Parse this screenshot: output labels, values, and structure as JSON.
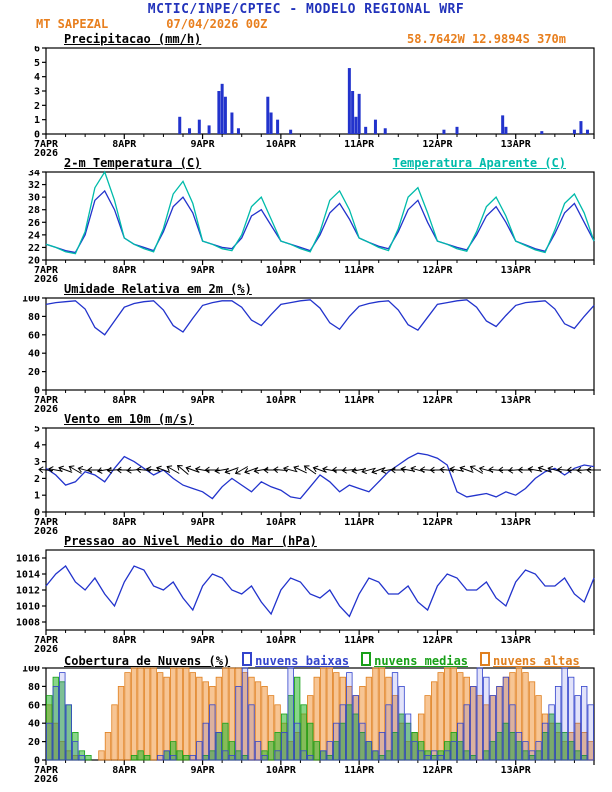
{
  "header": {
    "title": "MCTIC/INPE/CPTEC - MODELO REGIONAL WRF",
    "station": "MT SAPEZAL",
    "run": "07/04/2026 00Z",
    "location": "58.7642W 12.9894S 370m",
    "colors": {
      "title": "#2233bb",
      "meta": "#e87f1e"
    }
  },
  "x_axis": {
    "tick_labels": [
      "7APR",
      "8APR",
      "9APR",
      "10APR",
      "11APR",
      "12APR",
      "13APR"
    ],
    "year_label": "2026",
    "hours_total": 168
  },
  "chart_data": [
    {
      "id": "precipitation",
      "type": "bar",
      "title": "Precipitacao (mm/h)",
      "ylim": [
        0,
        6
      ],
      "yticks": [
        0,
        1,
        2,
        3,
        4,
        5,
        6
      ],
      "color": "#2233cc",
      "bars": [
        [
          41,
          1.2
        ],
        [
          44,
          0.4
        ],
        [
          47,
          1.0
        ],
        [
          50,
          0.6
        ],
        [
          53,
          3.0
        ],
        [
          54,
          3.5
        ],
        [
          55,
          2.6
        ],
        [
          57,
          1.5
        ],
        [
          59,
          0.4
        ],
        [
          68,
          2.6
        ],
        [
          69,
          1.5
        ],
        [
          71,
          1.0
        ],
        [
          75,
          0.3
        ],
        [
          93,
          4.6
        ],
        [
          94,
          3.0
        ],
        [
          95,
          1.2
        ],
        [
          96,
          2.8
        ],
        [
          98,
          0.5
        ],
        [
          101,
          1.0
        ],
        [
          104,
          0.4
        ],
        [
          122,
          0.3
        ],
        [
          126,
          0.5
        ],
        [
          140,
          1.3
        ],
        [
          141,
          0.5
        ],
        [
          152,
          0.2
        ],
        [
          162,
          0.3
        ],
        [
          164,
          0.9
        ],
        [
          166,
          0.3
        ]
      ]
    },
    {
      "id": "temperature",
      "type": "line",
      "title": "2-m Temperatura (C)",
      "ylim": [
        20,
        34
      ],
      "yticks": [
        20,
        22,
        24,
        26,
        28,
        30,
        32,
        34
      ],
      "step_hours": 3,
      "series": [
        {
          "name": "2-m Temperatura (C)",
          "color": "#2233cc",
          "values": [
            22.5,
            22.0,
            21.5,
            21.2,
            24.0,
            29.5,
            31.0,
            28.0,
            23.5,
            22.5,
            22.0,
            21.5,
            24.5,
            28.5,
            30.0,
            27.5,
            23.0,
            22.5,
            22.0,
            21.8,
            23.5,
            27.0,
            28.0,
            25.5,
            23.0,
            22.5,
            22.0,
            21.5,
            24.0,
            27.5,
            29.0,
            26.5,
            23.5,
            22.8,
            22.2,
            21.8,
            24.5,
            28.0,
            29.5,
            26.0,
            23.0,
            22.5,
            22.0,
            21.6,
            24.0,
            27.0,
            28.5,
            26.0,
            23.0,
            22.4,
            21.8,
            21.4,
            24.2,
            27.5,
            29.0,
            26.0,
            23.0
          ]
        },
        {
          "name": "Temperatura Aparente (C)",
          "color": "#00bbaa",
          "values": [
            22.5,
            22.0,
            21.3,
            21.0,
            24.5,
            31.5,
            34.0,
            29.5,
            23.5,
            22.5,
            21.8,
            21.3,
            25.0,
            30.5,
            32.5,
            29.0,
            23.0,
            22.5,
            21.8,
            21.5,
            24.0,
            28.5,
            30.0,
            26.5,
            23.0,
            22.5,
            21.8,
            21.3,
            24.5,
            29.5,
            31.0,
            28.0,
            23.5,
            22.8,
            22.0,
            21.5,
            25.0,
            30.0,
            31.5,
            27.5,
            23.0,
            22.5,
            21.8,
            21.4,
            24.5,
            28.5,
            30.0,
            27.0,
            23.0,
            22.3,
            21.6,
            21.2,
            24.8,
            29.0,
            30.5,
            27.5,
            23.0
          ]
        }
      ]
    },
    {
      "id": "humidity",
      "type": "line",
      "title": "Umidade Relativa em 2m (%)",
      "ylim": [
        0,
        100
      ],
      "yticks": [
        0,
        20,
        40,
        60,
        80,
        100
      ],
      "step_hours": 3,
      "series": [
        {
          "name": "Umidade Relativa em 2m (%)",
          "color": "#2233cc",
          "values": [
            93,
            95,
            96,
            97,
            88,
            68,
            60,
            75,
            90,
            94,
            96,
            97,
            87,
            70,
            63,
            78,
            92,
            95,
            97,
            97,
            90,
            76,
            70,
            82,
            93,
            95,
            97,
            98,
            89,
            73,
            66,
            80,
            91,
            94,
            96,
            97,
            87,
            71,
            65,
            79,
            93,
            95,
            97,
            98,
            90,
            75,
            69,
            81,
            92,
            95,
            96,
            97,
            88,
            72,
            67,
            80,
            92
          ]
        }
      ]
    },
    {
      "id": "wind",
      "type": "line",
      "title": "Vento em 10m (m/s)",
      "ylim": [
        0,
        5
      ],
      "yticks": [
        0,
        1,
        2,
        3,
        4,
        5
      ],
      "step_hours": 3,
      "series": [
        {
          "name": "Vento em 10m (m/s)",
          "color": "#2233cc",
          "values": [
            2.6,
            2.2,
            1.6,
            1.8,
            2.4,
            2.2,
            1.8,
            2.6,
            3.3,
            3.0,
            2.6,
            2.2,
            2.5,
            2.0,
            1.6,
            1.4,
            1.2,
            0.8,
            1.5,
            2.0,
            1.6,
            1.2,
            1.8,
            1.5,
            1.3,
            0.9,
            0.8,
            1.5,
            2.2,
            1.8,
            1.2,
            1.6,
            1.4,
            1.2,
            1.8,
            2.4,
            2.8,
            3.2,
            3.5,
            3.4,
            3.2,
            2.8,
            1.2,
            0.9,
            1.0,
            1.1,
            0.9,
            1.2,
            1.0,
            1.4,
            2.0,
            2.4,
            2.6,
            2.2,
            2.6,
            2.8,
            2.7
          ]
        }
      ],
      "barbs": {
        "y": 2.5,
        "color": "#000000",
        "angles": [
          185,
          190,
          200,
          210,
          195,
          180,
          170,
          175,
          180,
          175,
          185,
          190,
          200,
          210,
          220,
          200,
          190,
          180,
          170,
          160,
          150,
          160,
          170,
          180,
          185,
          195,
          205,
          215,
          200,
          190,
          180,
          175,
          170,
          165,
          160,
          170,
          180,
          190,
          195,
          185,
          180,
          185,
          190,
          200,
          210,
          195,
          185,
          180,
          175,
          180,
          190,
          200,
          195,
          185,
          180,
          175,
          180
        ]
      }
    },
    {
      "id": "pressure",
      "type": "line",
      "title": "Pressao ao Nivel Medio do Mar (hPa)",
      "ylim": [
        1007,
        1017
      ],
      "yticks": [
        1008,
        1010,
        1012,
        1014,
        1016
      ],
      "step_hours": 3,
      "series": [
        {
          "name": "Pressao ao Nivel Medio do Mar (hPa)",
          "color": "#2233cc",
          "values": [
            1012.5,
            1014.0,
            1015.0,
            1013.0,
            1012.0,
            1013.5,
            1011.5,
            1010.0,
            1013.0,
            1015.0,
            1014.5,
            1012.5,
            1012.0,
            1013.0,
            1011.0,
            1009.5,
            1012.5,
            1014.0,
            1013.5,
            1012.0,
            1011.5,
            1012.5,
            1010.5,
            1009.0,
            1012.0,
            1013.5,
            1013.0,
            1011.5,
            1011.0,
            1012.0,
            1010.0,
            1008.7,
            1011.5,
            1013.5,
            1013.0,
            1011.5,
            1011.5,
            1012.5,
            1010.5,
            1009.5,
            1012.5,
            1014.0,
            1013.5,
            1012.0,
            1012.0,
            1013.0,
            1011.0,
            1010.0,
            1013.0,
            1014.5,
            1014.0,
            1012.5,
            1012.5,
            1013.5,
            1011.5,
            1010.5,
            1013.5
          ]
        }
      ]
    },
    {
      "id": "clouds",
      "type": "bar-multi",
      "title": "Cobertura de Nuvens (%)",
      "ylim": [
        0,
        100
      ],
      "yticks": [
        0,
        20,
        40,
        60,
        80,
        100
      ],
      "step_hours": 2,
      "series": [
        {
          "name": "nuvens baixas",
          "color": "#3344cc",
          "fill": "rgba(60,70,220,0.15)",
          "values": [
            40,
            80,
            95,
            60,
            20,
            5,
            0,
            0,
            0,
            0,
            0,
            0,
            0,
            0,
            0,
            0,
            0,
            5,
            10,
            5,
            0,
            0,
            5,
            20,
            40,
            60,
            30,
            10,
            5,
            80,
            100,
            60,
            20,
            5,
            0,
            10,
            30,
            100,
            40,
            10,
            5,
            0,
            10,
            20,
            40,
            60,
            95,
            70,
            40,
            20,
            10,
            30,
            60,
            95,
            80,
            50,
            20,
            10,
            5,
            10,
            5,
            10,
            20,
            40,
            60,
            80,
            100,
            90,
            70,
            80,
            90,
            60,
            30,
            20,
            10,
            20,
            40,
            60,
            80,
            100,
            90,
            70,
            80,
            60
          ]
        },
        {
          "name": "nuvens medias",
          "color": "#18a018",
          "fill": "rgba(40,180,40,0.55)",
          "values": [
            70,
            90,
            85,
            60,
            30,
            10,
            5,
            0,
            0,
            0,
            0,
            0,
            0,
            5,
            10,
            5,
            0,
            0,
            10,
            20,
            10,
            5,
            0,
            0,
            5,
            10,
            30,
            40,
            20,
            10,
            5,
            0,
            0,
            10,
            20,
            30,
            50,
            70,
            90,
            60,
            40,
            20,
            10,
            5,
            20,
            40,
            60,
            50,
            30,
            20,
            10,
            5,
            10,
            30,
            50,
            40,
            30,
            20,
            10,
            5,
            10,
            20,
            30,
            20,
            10,
            5,
            0,
            10,
            20,
            30,
            40,
            30,
            20,
            10,
            5,
            10,
            30,
            50,
            40,
            30,
            20,
            10,
            5,
            0
          ]
        },
        {
          "name": "nuvens altas",
          "color": "#e08020",
          "fill": "rgba(240,150,60,0.55)",
          "values": [
            60,
            40,
            20,
            10,
            5,
            0,
            0,
            0,
            10,
            30,
            60,
            80,
            95,
            100,
            100,
            100,
            100,
            95,
            90,
            100,
            100,
            100,
            95,
            90,
            85,
            80,
            90,
            100,
            100,
            100,
            95,
            90,
            85,
            80,
            70,
            60,
            40,
            20,
            30,
            50,
            70,
            90,
            100,
            100,
            95,
            90,
            80,
            70,
            80,
            90,
            100,
            100,
            90,
            70,
            40,
            20,
            30,
            50,
            70,
            85,
            95,
            100,
            100,
            95,
            90,
            80,
            70,
            60,
            70,
            80,
            90,
            95,
            100,
            95,
            85,
            70,
            50,
            40,
            30,
            20,
            30,
            40,
            30,
            20
          ]
        }
      ]
    }
  ]
}
